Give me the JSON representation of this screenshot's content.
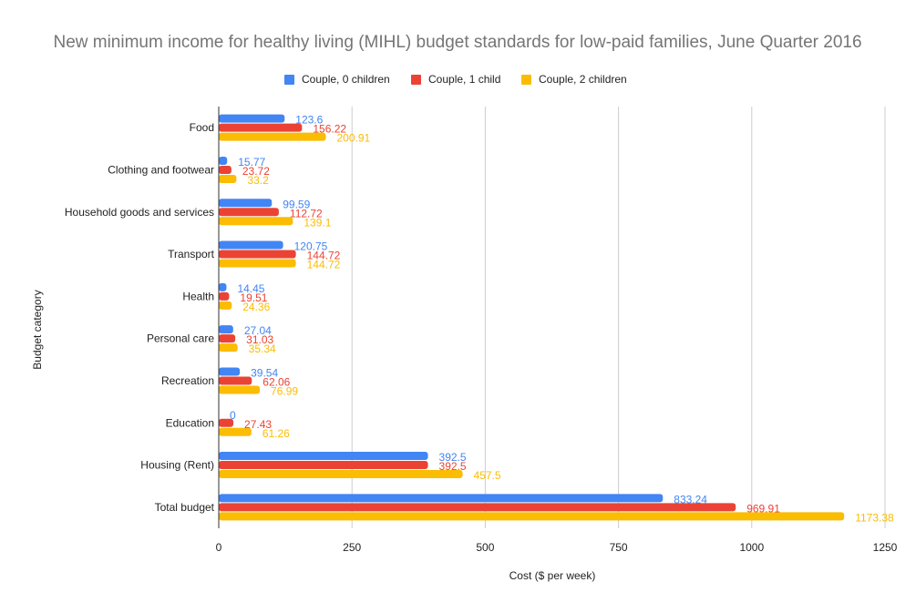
{
  "chart_data": {
    "type": "bar",
    "orientation": "horizontal",
    "title": "New minimum income for healthy living (MIHL) budget standards for low-paid families, June Quarter 2016",
    "xlabel": "Cost ($ per week)",
    "ylabel": "Budget category",
    "xlim": [
      0,
      1250
    ],
    "ticks": [
      0,
      250,
      500,
      750,
      1000,
      1250
    ],
    "grid": true,
    "legend_position": "top",
    "categories": [
      "Food",
      "Clothing and footwear",
      "Household goods and services",
      "Transport",
      "Health",
      "Personal care",
      "Recreation",
      "Education",
      "Housing (Rent)",
      "Total budget"
    ],
    "series": [
      {
        "name": "Couple, 0 children",
        "color": "#4285f4",
        "values": [
          123.6,
          15.77,
          99.59,
          120.75,
          14.45,
          27.04,
          39.54,
          0,
          392.5,
          833.24
        ]
      },
      {
        "name": "Couple, 1 child",
        "color": "#ea4335",
        "values": [
          156.22,
          23.72,
          112.72,
          144.72,
          19.51,
          31.03,
          62.06,
          27.43,
          392.5,
          969.91
        ]
      },
      {
        "name": "Couple, 2 children",
        "color": "#fbbc04",
        "values": [
          200.91,
          33.2,
          139.1,
          144.72,
          24.36,
          35.34,
          76.99,
          61.26,
          457.5,
          1173.38
        ]
      }
    ]
  }
}
